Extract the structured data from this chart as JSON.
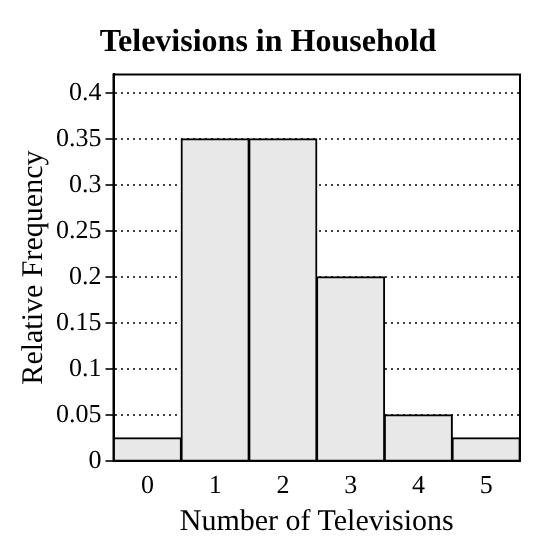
{
  "chart_data": {
    "type": "bar",
    "title": "Televisions in Household",
    "xlabel": "Number of Televisions",
    "ylabel": "Relative Frequency",
    "categories": [
      "0",
      "1",
      "2",
      "3",
      "4",
      "5"
    ],
    "values": [
      0.025,
      0.35,
      0.35,
      0.2,
      0.05,
      0.025
    ],
    "color": "#e8e8e8",
    "ylim": [
      0,
      0.42
    ],
    "yticks": [
      0,
      0.05,
      0.1,
      0.15,
      0.2,
      0.25,
      0.3,
      0.35,
      0.4
    ],
    "grid": "y",
    "legend": false
  }
}
